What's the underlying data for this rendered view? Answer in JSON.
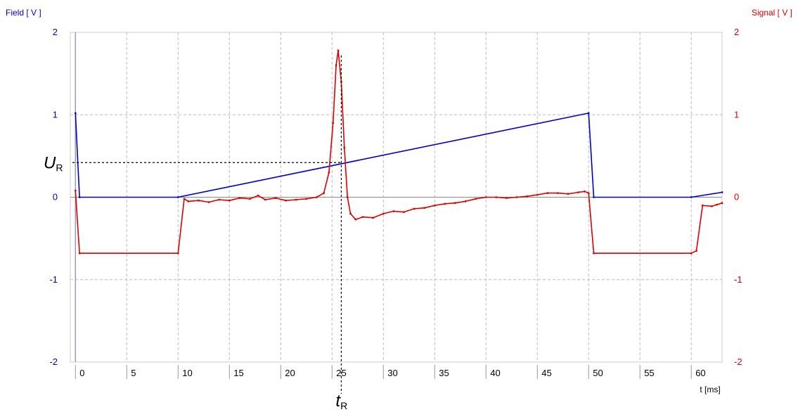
{
  "chart_data": {
    "type": "line",
    "y_left_label": "Field [ V ]",
    "y_right_label": "Signal [ V ]",
    "x_label": "t [ms]",
    "xlim": [
      -0.5,
      63
    ],
    "ylim": [
      -2,
      2
    ],
    "x_ticks": [
      0,
      5,
      10,
      15,
      20,
      25,
      30,
      35,
      40,
      45,
      50,
      55,
      60
    ],
    "y_ticks": [
      -2,
      -1,
      0,
      1,
      2
    ],
    "grid": true,
    "series": [
      {
        "name": "Field",
        "color": "#0000cc",
        "axis": "left",
        "points": [
          [
            0,
            1.02
          ],
          [
            0.4,
            0.0
          ],
          [
            10,
            0.0
          ],
          [
            50,
            1.02
          ],
          [
            50.5,
            0.0
          ],
          [
            60,
            0.0
          ],
          [
            63,
            0.06
          ]
        ]
      },
      {
        "name": "Signal",
        "color": "#dd0000",
        "axis": "right",
        "points": [
          [
            0,
            0.08
          ],
          [
            0.4,
            -0.68
          ],
          [
            10,
            -0.68
          ],
          [
            10.6,
            -0.02
          ],
          [
            11,
            -0.05
          ],
          [
            12,
            -0.04
          ],
          [
            13,
            -0.06
          ],
          [
            14,
            -0.03
          ],
          [
            15,
            -0.04
          ],
          [
            16,
            -0.01
          ],
          [
            17,
            -0.02
          ],
          [
            17.8,
            0.02
          ],
          [
            18.5,
            -0.03
          ],
          [
            19.5,
            -0.01
          ],
          [
            20.5,
            -0.04
          ],
          [
            21.5,
            -0.03
          ],
          [
            22.5,
            -0.02
          ],
          [
            23.5,
            0.0
          ],
          [
            24.2,
            0.05
          ],
          [
            24.7,
            0.3
          ],
          [
            25.1,
            0.9
          ],
          [
            25.4,
            1.6
          ],
          [
            25.6,
            1.78
          ],
          [
            25.9,
            1.4
          ],
          [
            26.2,
            0.6
          ],
          [
            26.5,
            0.0
          ],
          [
            26.8,
            -0.2
          ],
          [
            27.3,
            -0.27
          ],
          [
            28,
            -0.24
          ],
          [
            29,
            -0.25
          ],
          [
            30,
            -0.2
          ],
          [
            31,
            -0.17
          ],
          [
            32,
            -0.18
          ],
          [
            33,
            -0.14
          ],
          [
            34,
            -0.13
          ],
          [
            35,
            -0.1
          ],
          [
            36,
            -0.08
          ],
          [
            37,
            -0.07
          ],
          [
            38,
            -0.05
          ],
          [
            39,
            -0.02
          ],
          [
            40,
            0.0
          ],
          [
            41,
            0.0
          ],
          [
            42,
            -0.01
          ],
          [
            43,
            0.0
          ],
          [
            44,
            0.01
          ],
          [
            45,
            0.03
          ],
          [
            46,
            0.05
          ],
          [
            47,
            0.05
          ],
          [
            48,
            0.04
          ],
          [
            49,
            0.06
          ],
          [
            49.6,
            0.07
          ],
          [
            50,
            0.05
          ],
          [
            50.5,
            -0.68
          ],
          [
            60,
            -0.68
          ],
          [
            60.5,
            -0.65
          ],
          [
            61.1,
            -0.1
          ],
          [
            62,
            -0.11
          ],
          [
            62.5,
            -0.09
          ],
          [
            63,
            -0.07
          ]
        ]
      }
    ],
    "annotations": {
      "t_R": 25.9,
      "U_R": 0.42,
      "U_label_main": "U",
      "U_label_sub": "R",
      "t_label_main": "t",
      "t_label_sub": "R"
    },
    "colors": {
      "left_axis": "#0000cc",
      "right_axis": "#dd0000",
      "grid": "#bbbbbb",
      "zero_line": "#888888"
    }
  }
}
